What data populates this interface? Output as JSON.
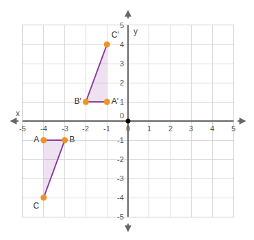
{
  "chart_data": {
    "type": "polygon",
    "x_label": "x",
    "y_label": "y",
    "xlim": [
      -5,
      5
    ],
    "ylim": [
      -5,
      5
    ],
    "xticks": [
      -5,
      -4,
      -3,
      -2,
      -1,
      0,
      1,
      2,
      3,
      4,
      5
    ],
    "yticks": [
      -5,
      -4,
      -3,
      -2,
      -1,
      0,
      1,
      2,
      3,
      4,
      5
    ],
    "grid": true,
    "series": [
      {
        "type": "polygon",
        "x": [
          -4,
          -3,
          -4
        ],
        "y": [
          -1,
          -1,
          -4
        ],
        "labels": [
          "A",
          "B",
          "C"
        ],
        "color": "#8b3a9e",
        "marker": "circle"
      },
      {
        "type": "polygon",
        "x": [
          -1,
          -2,
          -1
        ],
        "y": [
          1,
          1,
          4
        ],
        "labels": [
          "A′",
          "B′",
          "C′"
        ],
        "color": "#8b3a9e",
        "marker": "circle"
      },
      {
        "type": "scatter",
        "x": [
          0
        ],
        "y": [
          0
        ],
        "color": "#000000",
        "marker": "circle"
      }
    ]
  }
}
